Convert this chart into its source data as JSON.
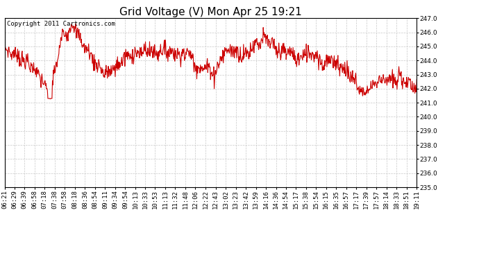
{
  "title": "Grid Voltage (V) Mon Apr 25 19:21",
  "copyright_text": "Copyright 2011 Cartronics.com",
  "line_color": "#cc0000",
  "background_color": "#ffffff",
  "plot_bg_color": "#ffffff",
  "grid_color": "#c8c8c8",
  "grid_style": "--",
  "ylim": [
    235.0,
    247.0
  ],
  "yticks": [
    235.0,
    236.0,
    237.0,
    238.0,
    239.0,
    240.0,
    241.0,
    242.0,
    243.0,
    244.0,
    245.0,
    246.0,
    247.0
  ],
  "xtick_labels": [
    "06:21",
    "06:29",
    "06:39",
    "06:58",
    "07:18",
    "07:38",
    "07:58",
    "08:18",
    "08:36",
    "08:54",
    "09:11",
    "09:34",
    "09:54",
    "10:13",
    "10:33",
    "10:53",
    "11:13",
    "11:32",
    "11:48",
    "12:06",
    "12:22",
    "12:43",
    "13:02",
    "13:23",
    "13:42",
    "13:59",
    "14:16",
    "14:36",
    "14:54",
    "15:17",
    "15:38",
    "15:54",
    "16:15",
    "16:35",
    "16:57",
    "17:17",
    "17:39",
    "17:57",
    "18:14",
    "18:33",
    "18:51",
    "19:11"
  ],
  "line_width": 0.8,
  "title_fontsize": 11,
  "tick_fontsize": 6.5,
  "copyright_fontsize": 6.5,
  "control_t": [
    0.0,
    0.04,
    0.08,
    0.11,
    0.14,
    0.165,
    0.19,
    0.22,
    0.245,
    0.27,
    0.295,
    0.32,
    0.345,
    0.365,
    0.385,
    0.405,
    0.425,
    0.445,
    0.465,
    0.49,
    0.51,
    0.525,
    0.545,
    0.565,
    0.585,
    0.61,
    0.635,
    0.655,
    0.675,
    0.695,
    0.715,
    0.735,
    0.755,
    0.775,
    0.8,
    0.82,
    0.84,
    0.86,
    0.875,
    0.89,
    0.905,
    0.92,
    0.94,
    0.96,
    0.975,
    1.0
  ],
  "control_v": [
    244.8,
    244.2,
    243.2,
    241.5,
    245.8,
    246.5,
    245.2,
    243.8,
    243.0,
    243.5,
    244.3,
    244.5,
    244.8,
    244.5,
    244.8,
    244.6,
    244.4,
    244.6,
    243.6,
    243.5,
    243.0,
    244.2,
    244.8,
    244.6,
    244.4,
    245.3,
    245.5,
    244.8,
    244.6,
    244.5,
    244.0,
    244.6,
    244.3,
    243.8,
    244.0,
    243.5,
    243.0,
    242.0,
    241.7,
    242.2,
    242.5,
    242.8,
    242.6,
    242.8,
    242.5,
    242.0
  ]
}
